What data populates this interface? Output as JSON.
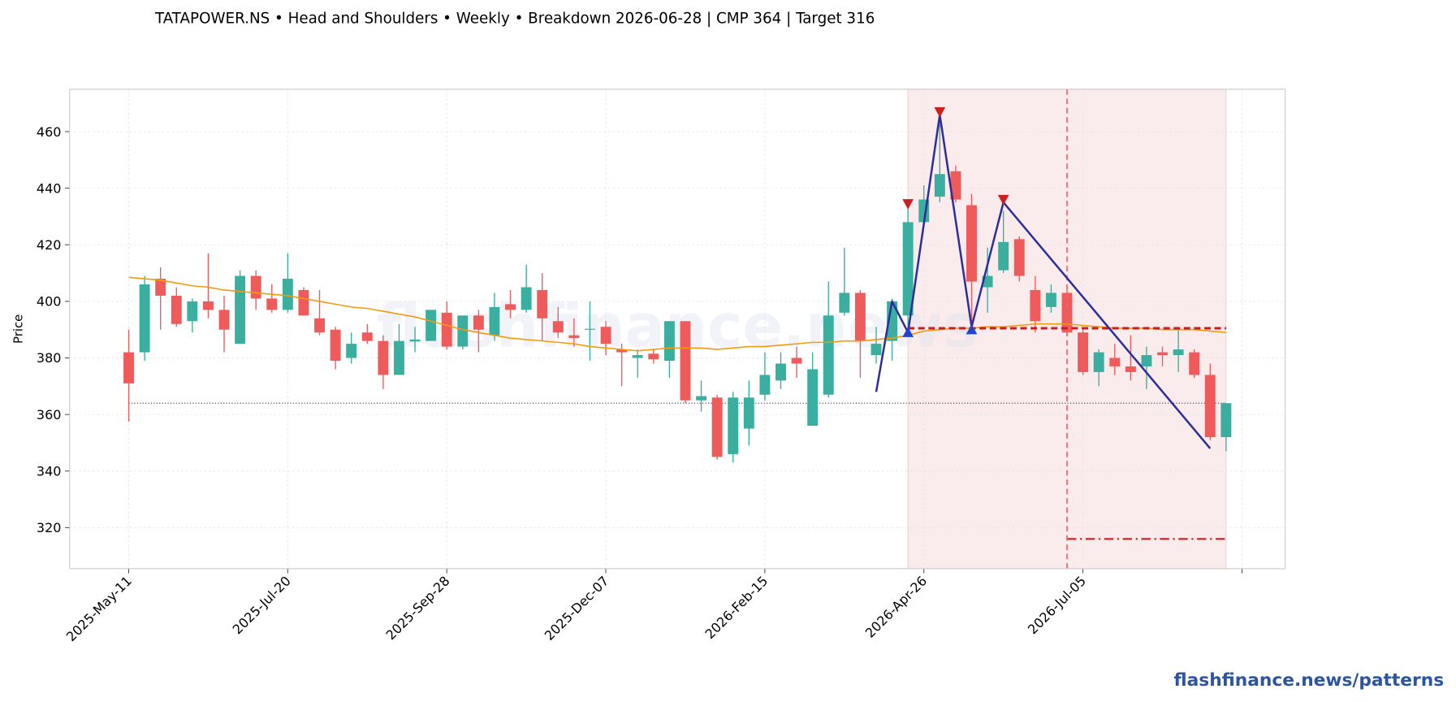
{
  "chart_data": {
    "type": "candlestick",
    "title": "TATAPOWER.NS  •  Head and Shoulders  •  Weekly  •  Breakdown 2026-06-28  |  CMP 364  |  Target 316",
    "watermark": "flashfinance.news",
    "footer": "flashfinance.news/patterns",
    "ylabel": "Price",
    "x": [
      "2025-05-11",
      "2025-05-18",
      "2025-05-25",
      "2025-06-01",
      "2025-06-08",
      "2025-06-15",
      "2025-06-22",
      "2025-06-29",
      "2025-07-06",
      "2025-07-13",
      "2025-07-20",
      "2025-07-27",
      "2025-08-03",
      "2025-08-10",
      "2025-08-17",
      "2025-08-24",
      "2025-08-31",
      "2025-09-07",
      "2025-09-14",
      "2025-09-21",
      "2025-09-28",
      "2025-10-05",
      "2025-10-12",
      "2025-10-19",
      "2025-10-26",
      "2025-11-02",
      "2025-11-09",
      "2025-11-16",
      "2025-11-23",
      "2025-11-30",
      "2025-12-07",
      "2025-12-14",
      "2025-12-21",
      "2025-12-28",
      "2026-01-04",
      "2026-01-11",
      "2026-01-18",
      "2026-01-25",
      "2026-02-01",
      "2026-02-08",
      "2026-02-15",
      "2026-02-22",
      "2026-03-01",
      "2026-03-08",
      "2026-03-15",
      "2026-03-22",
      "2026-03-29",
      "2026-04-05",
      "2026-04-12",
      "2026-04-19",
      "2026-04-26",
      "2026-05-03",
      "2026-05-10",
      "2026-05-17",
      "2026-05-24",
      "2026-05-31",
      "2026-06-07",
      "2026-06-14",
      "2026-06-21",
      "2026-06-28",
      "2026-07-05",
      "2026-07-12",
      "2026-07-19",
      "2026-07-26",
      "2026-08-02",
      "2026-08-09",
      "2026-08-16",
      "2026-08-23",
      "2026-08-30",
      "2026-09-06"
    ],
    "open": [
      382,
      382,
      408,
      402,
      393,
      400,
      397,
      385,
      409,
      401,
      397,
      404,
      394,
      390,
      380,
      389,
      386,
      374,
      385.8,
      386,
      396,
      384,
      395,
      388,
      399,
      397,
      404,
      393,
      388,
      390,
      391,
      383,
      380,
      381.5,
      379,
      393,
      365,
      366,
      346,
      355,
      367,
      372,
      380,
      356,
      367,
      396,
      403,
      381,
      386,
      395,
      428,
      437,
      446,
      434,
      405,
      411,
      422,
      404,
      398,
      403,
      389,
      375,
      380,
      377,
      377,
      382,
      381,
      382,
      374,
      352
    ],
    "high": [
      390,
      409,
      412,
      405,
      401,
      417,
      402,
      411,
      411,
      406,
      417,
      405,
      404,
      391,
      389,
      392,
      388,
      392,
      391,
      397,
      400,
      395,
      397,
      403,
      404,
      413,
      410,
      398,
      394,
      400,
      393,
      385,
      383,
      383,
      393,
      393,
      372,
      367,
      368,
      372,
      382,
      382,
      384,
      382,
      407,
      419,
      404,
      391,
      401,
      433,
      441,
      465,
      448,
      438,
      419,
      432,
      423,
      409,
      406,
      404,
      390,
      383,
      385,
      388,
      384,
      384,
      390,
      383,
      378,
      364
    ],
    "low": [
      357.5,
      379,
      390,
      391,
      389,
      394,
      382,
      385,
      397,
      396,
      396,
      395,
      388,
      376,
      378,
      385,
      369,
      374,
      382,
      386,
      383,
      383,
      382,
      386,
      394,
      396,
      386,
      387,
      384,
      379,
      381,
      370,
      373,
      378,
      373,
      364,
      361,
      344,
      343,
      349,
      365,
      369,
      373,
      356,
      366,
      395,
      373,
      378,
      379,
      388,
      428,
      435,
      435,
      391,
      396,
      410,
      407,
      389,
      396,
      388,
      374,
      370,
      374,
      372,
      369,
      377,
      375,
      373,
      351,
      347
    ],
    "close": [
      371,
      406,
      402,
      392,
      400,
      397,
      390,
      409,
      401,
      397,
      408,
      395,
      389,
      379,
      385,
      386,
      374,
      386,
      386.5,
      397,
      384,
      395,
      390,
      398,
      397,
      405,
      394,
      389,
      387,
      390.3,
      385,
      382,
      381,
      379.5,
      393,
      365,
      366.5,
      345,
      366,
      366,
      374,
      378,
      378,
      376,
      395,
      403,
      386,
      385,
      400,
      428,
      436,
      445,
      436,
      407,
      409,
      421,
      409,
      393,
      403,
      389,
      375,
      382,
      377,
      375,
      381,
      381,
      383,
      374,
      352,
      364
    ],
    "up_color": "#3aaf9f",
    "down_color": "#ef5b5b",
    "xlim": [
      "2025-04-15",
      "2026-10-02"
    ],
    "xticks": [
      {
        "value": "2025-05-11",
        "label": "2025-May-11"
      },
      {
        "value": "2025-07-20",
        "label": "2025-Jul-20"
      },
      {
        "value": "2025-09-28",
        "label": "2025-Sep-28"
      },
      {
        "value": "2025-12-07",
        "label": "2025-Dec-07"
      },
      {
        "value": "2026-02-15",
        "label": "2026-Feb-15"
      },
      {
        "value": "2026-04-26",
        "label": "2026-Apr-26"
      },
      {
        "value": "2026-07-05",
        "label": "2026-Jul-05"
      },
      {
        "value": "2026-09-13",
        "label": null
      }
    ],
    "ylim": [
      305.5,
      475
    ],
    "yticks": [
      320,
      340,
      360,
      380,
      400,
      420,
      440,
      460
    ],
    "grid": true,
    "moving_average": {
      "color": "#f59a0c",
      "values": [
        408.5,
        408,
        407.5,
        406.5,
        405.5,
        405,
        404,
        403.5,
        403,
        402.5,
        402,
        401,
        400,
        399,
        398,
        397.5,
        396.5,
        395.5,
        394.5,
        393,
        391.5,
        390,
        389,
        388,
        387,
        386.5,
        386,
        385.5,
        385,
        384,
        383.5,
        383,
        382.5,
        383,
        383.5,
        383.5,
        383.5,
        383,
        383.5,
        384,
        384,
        384.5,
        385,
        385.5,
        385.5,
        386,
        386,
        386.5,
        387,
        388,
        389.5,
        390,
        390.5,
        390.5,
        391,
        391,
        391.5,
        392,
        392,
        392,
        391.5,
        391,
        390.5,
        390.5,
        390.5,
        390,
        390,
        390,
        389.5,
        389
      ]
    },
    "pattern_line": {
      "color": "#2e2e9a",
      "x": [
        "2026-04-05",
        "2026-04-12",
        "2026-04-19",
        "2026-05-03",
        "2026-05-17",
        "2026-05-31",
        "2026-08-30"
      ],
      "values": [
        368,
        400,
        389,
        466,
        391,
        435,
        348
      ]
    },
    "peaks": {
      "color": "#cc1f1f",
      "x": [
        "2026-04-19",
        "2026-05-03",
        "2026-05-31"
      ],
      "values": [
        434.5,
        467,
        436
      ]
    },
    "troughs": {
      "color": "#2244cc",
      "x": [
        "2026-04-19",
        "2026-05-17"
      ],
      "values": [
        389,
        390
      ]
    },
    "neckline": {
      "value": 390.5,
      "color": "#c81e1e",
      "x": [
        "2026-04-19",
        "2026-09-06"
      ]
    },
    "target_line": {
      "value": 316,
      "color": "#c81e1e",
      "x": [
        "2026-06-28",
        "2026-09-06"
      ]
    },
    "cmp_line": {
      "value": 364,
      "color": "#333333",
      "x": [
        "2025-05-11",
        "2026-09-06"
      ]
    },
    "breakdown_date": "2026-06-28",
    "breakdown_color": "#ee6666",
    "shade": {
      "color": "#f6e0e0",
      "x": [
        "2026-04-19",
        "2026-09-06"
      ]
    }
  }
}
